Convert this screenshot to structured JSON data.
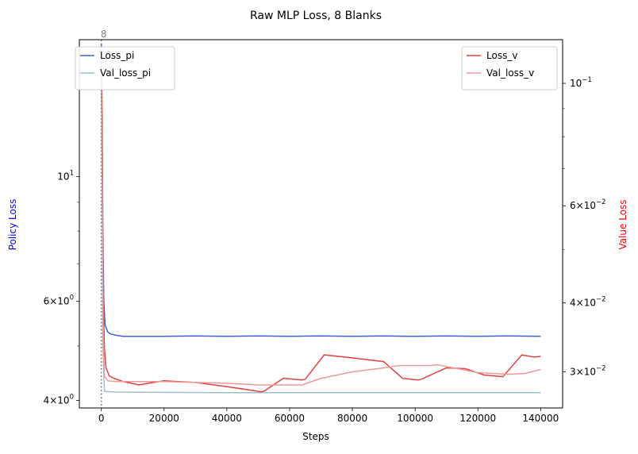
{
  "chart_data": {
    "type": "line",
    "title": "Raw MLP Loss, 8 Blanks",
    "xlabel": "Steps",
    "ylabel_left": "Policy Loss",
    "ylabel_right": "Value Loss",
    "xlim": [
      -7000,
      147000
    ],
    "x_ticks": [
      0,
      20000,
      40000,
      60000,
      80000,
      100000,
      120000,
      140000
    ],
    "x_tick_labels": [
      "0",
      "20000",
      "40000",
      "60000",
      "80000",
      "100000",
      "120000",
      "140000"
    ],
    "left_axis": {
      "scale": "log",
      "lim": [
        3.88,
        17.5
      ],
      "major_ticks": [
        {
          "value": 4,
          "base": "4×10",
          "exp": "0"
        },
        {
          "value": 6,
          "base": "6×10",
          "exp": "0"
        },
        {
          "value": 10,
          "base": "10",
          "exp": "1"
        }
      ],
      "minor_ticks": [
        5,
        7,
        8,
        9
      ],
      "color": "#0000ff"
    },
    "right_axis": {
      "scale": "log",
      "lim": [
        0.0258,
        0.12
      ],
      "major_ticks": [
        {
          "value": 0.1,
          "base": "10",
          "exp": "−1"
        },
        {
          "value": 0.06,
          "base": "6×10",
          "exp": "−2"
        },
        {
          "value": 0.04,
          "base": "4×10",
          "exp": "−2"
        },
        {
          "value": 0.03,
          "base": "3×10",
          "exp": "−2"
        }
      ],
      "minor_ticks": [
        0.05,
        0.07,
        0.08,
        0.09
      ],
      "color": "#ff0000"
    },
    "vline": {
      "x": 0,
      "label": "8",
      "color": "#808080"
    },
    "grid": false,
    "legend_left": {
      "placement": "upper-left",
      "entries": [
        "Loss_pi",
        "Val_loss_pi"
      ]
    },
    "legend_right": {
      "placement": "upper-right",
      "entries": [
        "Loss_v",
        "Val_loss_v"
      ]
    },
    "series": [
      {
        "name": "Loss_pi",
        "axis": "left",
        "color": "#4060d8",
        "x": [
          0,
          300,
          500,
          800,
          1200,
          2000,
          3000,
          5000,
          7000,
          10000,
          20000,
          30000,
          40000,
          50000,
          60000,
          70000,
          80000,
          90000,
          100000,
          110000,
          120000,
          130000,
          140000
        ],
        "y": [
          17.2,
          12.5,
          8.0,
          6.0,
          5.45,
          5.3,
          5.25,
          5.22,
          5.2,
          5.2,
          5.2,
          5.21,
          5.2,
          5.21,
          5.2,
          5.21,
          5.2,
          5.21,
          5.2,
          5.21,
          5.2,
          5.21,
          5.2
        ]
      },
      {
        "name": "Val_loss_pi",
        "axis": "left",
        "color": "#9cc0c8",
        "x": [
          0,
          300,
          500,
          1000,
          5000,
          20000,
          40000,
          60000,
          80000,
          100000,
          120000,
          140000
        ],
        "y": [
          17.0,
          9.0,
          5.0,
          4.15,
          4.14,
          4.135,
          4.13,
          4.13,
          4.13,
          4.13,
          4.13,
          4.13
        ]
      },
      {
        "name": "Loss_v",
        "axis": "right",
        "color": "#e34040",
        "x": [
          0,
          300,
          600,
          1000,
          1500,
          2500,
          4000,
          7000,
          12000,
          15000,
          20000,
          30000,
          40000,
          51000,
          52000,
          58000,
          64000,
          65000,
          71000,
          80000,
          90000,
          96000,
          101000,
          102000,
          110000,
          116000,
          122000,
          128000,
          134000,
          138000,
          140000
        ],
        "y": [
          0.112,
          0.07,
          0.04,
          0.033,
          0.0305,
          0.0295,
          0.0292,
          0.0288,
          0.0284,
          0.0286,
          0.0289,
          0.0287,
          0.0282,
          0.0276,
          0.0277,
          0.0292,
          0.029,
          0.0291,
          0.0322,
          0.0318,
          0.0313,
          0.0292,
          0.029,
          0.0291,
          0.0305,
          0.0304,
          0.0296,
          0.0294,
          0.0322,
          0.0319,
          0.032
        ]
      },
      {
        "name": "Val_loss_v",
        "axis": "right",
        "color": "#f09898",
        "x": [
          0,
          300,
          600,
          1000,
          2000,
          5000,
          10000,
          20000,
          30000,
          40000,
          50000,
          60000,
          64000,
          70000,
          80000,
          90000,
          95000,
          105000,
          107000,
          120000,
          130000,
          135000,
          140000
        ],
        "y": [
          0.112,
          0.065,
          0.035,
          0.0295,
          0.0289,
          0.0288,
          0.0288,
          0.0288,
          0.0287,
          0.0286,
          0.0284,
          0.0284,
          0.0284,
          0.0292,
          0.03,
          0.0305,
          0.0308,
          0.0308,
          0.0309,
          0.0299,
          0.0297,
          0.0298,
          0.0303
        ]
      }
    ]
  }
}
